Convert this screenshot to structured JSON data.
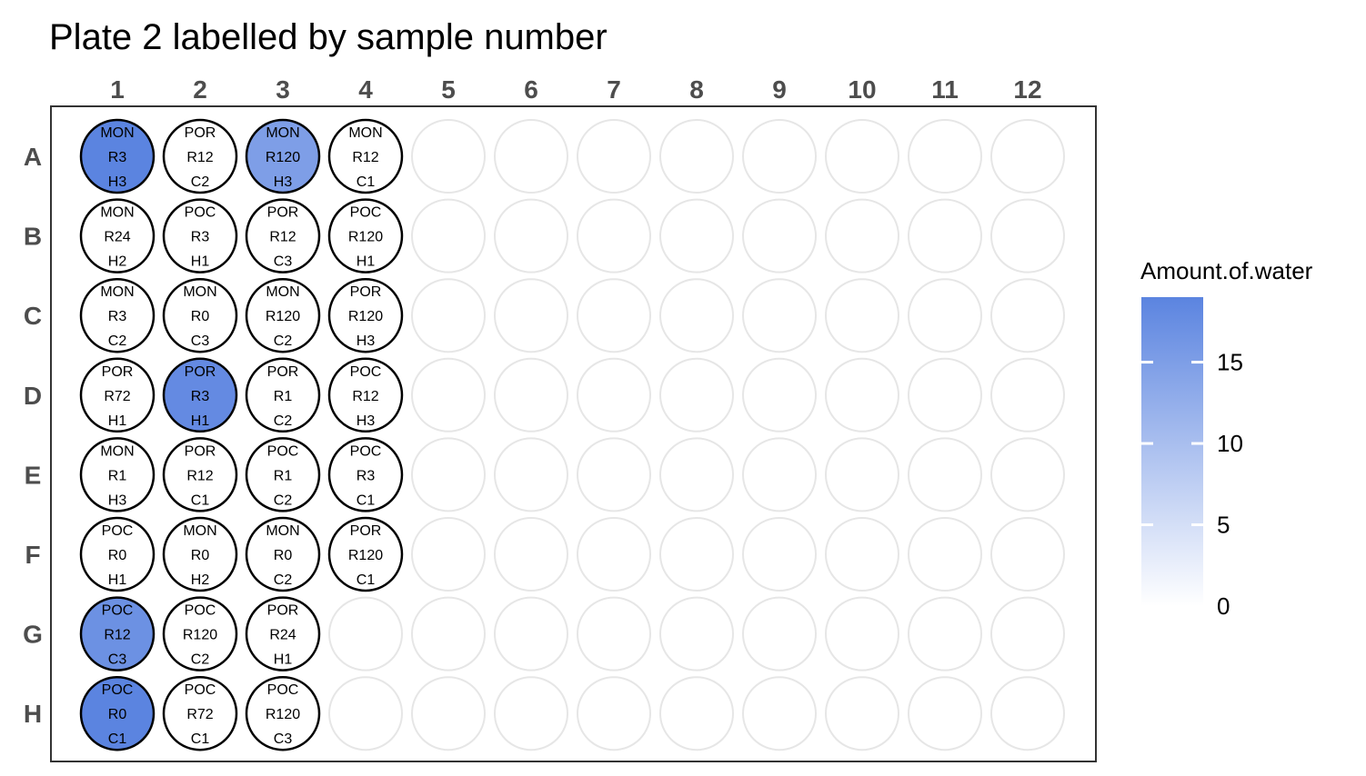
{
  "chart_data": {
    "type": "plate",
    "title": "Plate 2 labelled by sample number",
    "columns": [
      "1",
      "2",
      "3",
      "4",
      "5",
      "6",
      "7",
      "8",
      "9",
      "10",
      "11",
      "12"
    ],
    "rows": [
      "A",
      "B",
      "C",
      "D",
      "E",
      "F",
      "G",
      "H"
    ],
    "fill_scale": {
      "name": "Amount.of.water",
      "min": 0,
      "max": 19,
      "low_color": "#ffffff",
      "high_color": "#5b84e0",
      "breaks": [
        0,
        5,
        10,
        15
      ]
    },
    "empty_well_color": "#e6e6e6",
    "filled_well_border": "#000000",
    "wells": [
      {
        "row": "A",
        "col": 1,
        "sample": "MON",
        "treatment": "R3",
        "rep": "H3",
        "water": 19
      },
      {
        "row": "A",
        "col": 2,
        "sample": "POR",
        "treatment": "R12",
        "rep": "C2",
        "water": 0
      },
      {
        "row": "A",
        "col": 3,
        "sample": "MON",
        "treatment": "R120",
        "rep": "H3",
        "water": 15
      },
      {
        "row": "A",
        "col": 4,
        "sample": "MON",
        "treatment": "R12",
        "rep": "C1",
        "water": 0
      },
      {
        "row": "B",
        "col": 1,
        "sample": "MON",
        "treatment": "R24",
        "rep": "H2",
        "water": 0
      },
      {
        "row": "B",
        "col": 2,
        "sample": "POC",
        "treatment": "R3",
        "rep": "H1",
        "water": 0
      },
      {
        "row": "B",
        "col": 3,
        "sample": "POR",
        "treatment": "R12",
        "rep": "C3",
        "water": 0
      },
      {
        "row": "B",
        "col": 4,
        "sample": "POC",
        "treatment": "R120",
        "rep": "H1",
        "water": 0
      },
      {
        "row": "C",
        "col": 1,
        "sample": "MON",
        "treatment": "R3",
        "rep": "C2",
        "water": 0
      },
      {
        "row": "C",
        "col": 2,
        "sample": "MON",
        "treatment": "R0",
        "rep": "C3",
        "water": 0
      },
      {
        "row": "C",
        "col": 3,
        "sample": "MON",
        "treatment": "R120",
        "rep": "C2",
        "water": 0
      },
      {
        "row": "C",
        "col": 4,
        "sample": "POR",
        "treatment": "R120",
        "rep": "H3",
        "water": 0
      },
      {
        "row": "D",
        "col": 1,
        "sample": "POR",
        "treatment": "R72",
        "rep": "H1",
        "water": 0
      },
      {
        "row": "D",
        "col": 2,
        "sample": "POR",
        "treatment": "R3",
        "rep": "H1",
        "water": 18
      },
      {
        "row": "D",
        "col": 3,
        "sample": "POR",
        "treatment": "R1",
        "rep": "C2",
        "water": 0
      },
      {
        "row": "D",
        "col": 4,
        "sample": "POC",
        "treatment": "R12",
        "rep": "H3",
        "water": 0
      },
      {
        "row": "E",
        "col": 1,
        "sample": "MON",
        "treatment": "R1",
        "rep": "H3",
        "water": 0
      },
      {
        "row": "E",
        "col": 2,
        "sample": "POR",
        "treatment": "R12",
        "rep": "C1",
        "water": 0
      },
      {
        "row": "E",
        "col": 3,
        "sample": "POC",
        "treatment": "R1",
        "rep": "C2",
        "water": 0
      },
      {
        "row": "E",
        "col": 4,
        "sample": "POC",
        "treatment": "R3",
        "rep": "C1",
        "water": 0
      },
      {
        "row": "F",
        "col": 1,
        "sample": "POC",
        "treatment": "R0",
        "rep": "H1",
        "water": 0
      },
      {
        "row": "F",
        "col": 2,
        "sample": "MON",
        "treatment": "R0",
        "rep": "H2",
        "water": 0
      },
      {
        "row": "F",
        "col": 3,
        "sample": "MON",
        "treatment": "R0",
        "rep": "C2",
        "water": 0
      },
      {
        "row": "F",
        "col": 4,
        "sample": "POR",
        "treatment": "R120",
        "rep": "C1",
        "water": 0
      },
      {
        "row": "G",
        "col": 1,
        "sample": "POC",
        "treatment": "R12",
        "rep": "C3",
        "water": 17
      },
      {
        "row": "G",
        "col": 2,
        "sample": "POC",
        "treatment": "R120",
        "rep": "C2",
        "water": 0
      },
      {
        "row": "G",
        "col": 3,
        "sample": "POR",
        "treatment": "R24",
        "rep": "H1",
        "water": 0
      },
      {
        "row": "H",
        "col": 1,
        "sample": "POC",
        "treatment": "R0",
        "rep": "C1",
        "water": 19
      },
      {
        "row": "H",
        "col": 2,
        "sample": "POC",
        "treatment": "R72",
        "rep": "C1",
        "water": 0
      },
      {
        "row": "H",
        "col": 3,
        "sample": "POC",
        "treatment": "R120",
        "rep": "C3",
        "water": 0
      }
    ]
  }
}
